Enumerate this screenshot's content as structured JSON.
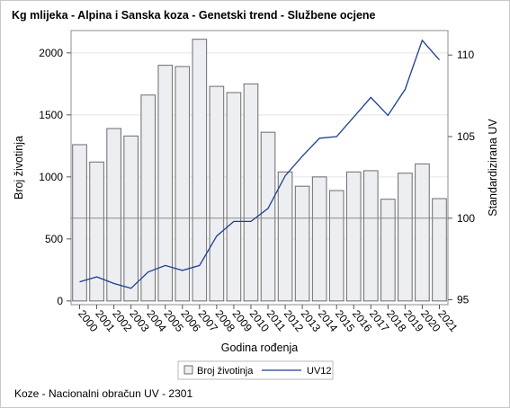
{
  "title": "Kg mlijeka - Alpina i Sanska koza - Genetski trend - Službene ocjene",
  "footnote": "Koze - Nacionalni obračun UV - 2301",
  "chart_data": {
    "type": "bar+line",
    "categories": [
      "2000",
      "2001",
      "2002",
      "2003",
      "2004",
      "2005",
      "2006",
      "2007",
      "2008",
      "2009",
      "2010",
      "2011",
      "2012",
      "2013",
      "2014",
      "2015",
      "2016",
      "2017",
      "2018",
      "2019",
      "2020",
      "2021"
    ],
    "series": [
      {
        "name": "Broj životinja",
        "type": "bar",
        "axis": "left",
        "values": [
          1260,
          1120,
          1390,
          1330,
          1660,
          1900,
          1890,
          2110,
          1730,
          1680,
          1750,
          1360,
          1040,
          925,
          1000,
          890,
          1040,
          1050,
          820,
          1030,
          1105,
          825
        ]
      },
      {
        "name": "UV12",
        "type": "line",
        "axis": "right",
        "values": [
          96.1,
          96.4,
          96.0,
          95.7,
          96.7,
          97.1,
          96.8,
          97.1,
          98.9,
          99.8,
          99.8,
          100.6,
          102.6,
          103.8,
          104.9,
          105.0,
          106.2,
          107.4,
          106.3,
          107.9,
          110.9,
          109.7
        ]
      }
    ],
    "xlabel": "Godina rođenja",
    "ylabel_left": "Broj životinja",
    "ylabel_right": "Standardizirana UV",
    "yticks_left": [
      0,
      500,
      1000,
      1500,
      2000
    ],
    "yticks_right": [
      95,
      100,
      105,
      110
    ],
    "ylim_left": [
      -30,
      2180
    ],
    "ylim_right": [
      94.7,
      111.5
    ],
    "reference_line_right": 100,
    "grid": true,
    "legend_position": "bottom",
    "colors": {
      "bar_fill": "#eceef2",
      "bar_stroke": "#6c6c6c",
      "line": "#1f3f8f",
      "reference_line": "#8a8a8a",
      "grid": "#e4e4e4"
    }
  }
}
